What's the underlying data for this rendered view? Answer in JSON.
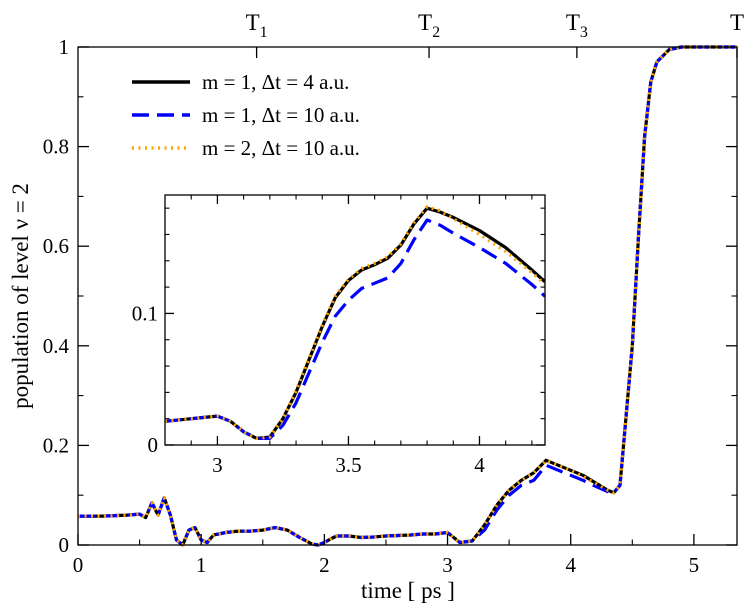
{
  "chart_data": [
    {
      "id": "main",
      "type": "line",
      "xlabel": "time [ ps ]",
      "ylabel": "population of level  ν = 2",
      "xlim": [
        0,
        5.35
      ],
      "ylim": [
        0,
        1
      ],
      "xticks": [
        0,
        1,
        2,
        3,
        4,
        5
      ],
      "xtick_labels": [
        "0",
        "1",
        "2",
        "3",
        "4",
        "5"
      ],
      "yticks": [
        0,
        0.2,
        0.4,
        0.6,
        0.8,
        1
      ],
      "ytick_labels": [
        "0",
        "0.2",
        "0.4",
        "0.6",
        "0.8",
        "1"
      ],
      "top_markers": [
        {
          "label": "T",
          "sub": "1",
          "x": 1.45
        },
        {
          "label": "T",
          "sub": "2",
          "x": 2.85
        },
        {
          "label": "T",
          "sub": "3",
          "x": 4.05
        },
        {
          "label": "T",
          "sub": "",
          "x": 5.35
        }
      ],
      "legend": {
        "position": "top-left"
      },
      "x": [
        0,
        0.1,
        0.2,
        0.3,
        0.4,
        0.5,
        0.55,
        0.6,
        0.65,
        0.7,
        0.75,
        0.8,
        0.85,
        0.9,
        0.95,
        1.0,
        1.05,
        1.1,
        1.2,
        1.3,
        1.4,
        1.5,
        1.6,
        1.7,
        1.8,
        1.9,
        1.95,
        2.0,
        2.05,
        2.1,
        2.2,
        2.3,
        2.4,
        2.5,
        2.6,
        2.7,
        2.8,
        2.9,
        3.0,
        3.05,
        3.1,
        3.2,
        3.3,
        3.4,
        3.5,
        3.6,
        3.7,
        3.8,
        3.9,
        4.0,
        4.1,
        4.2,
        4.3,
        4.35,
        4.4,
        4.5,
        4.55,
        4.6,
        4.65,
        4.7,
        4.8,
        4.9,
        5.0,
        5.1,
        5.2,
        5.35
      ],
      "series": [
        {
          "name": "m = 1,  Δt = 4 a.u.",
          "color": "#000000",
          "dash": "solid",
          "values": [
            0.058,
            0.058,
            0.058,
            0.059,
            0.06,
            0.062,
            0.055,
            0.085,
            0.06,
            0.095,
            0.06,
            0.01,
            0.0,
            0.03,
            0.035,
            0.01,
            0.005,
            0.02,
            0.025,
            0.028,
            0.028,
            0.03,
            0.035,
            0.03,
            0.015,
            0.002,
            0.0,
            0.005,
            0.012,
            0.018,
            0.018,
            0.015,
            0.016,
            0.018,
            0.019,
            0.02,
            0.022,
            0.022,
            0.025,
            0.015,
            0.005,
            0.008,
            0.04,
            0.08,
            0.11,
            0.13,
            0.145,
            0.17,
            0.16,
            0.15,
            0.14,
            0.125,
            0.11,
            0.105,
            0.12,
            0.4,
            0.62,
            0.82,
            0.93,
            0.97,
            0.995,
            1.0,
            1.0,
            1.0,
            1.0,
            1.0
          ]
        },
        {
          "name": "m = 1,  Δt = 10 a.u.",
          "color": "#0000ff",
          "dash": "long",
          "values": [
            0.058,
            0.058,
            0.058,
            0.059,
            0.06,
            0.062,
            0.055,
            0.085,
            0.06,
            0.095,
            0.06,
            0.01,
            0.0,
            0.03,
            0.035,
            0.01,
            0.005,
            0.02,
            0.025,
            0.028,
            0.028,
            0.03,
            0.035,
            0.03,
            0.015,
            0.002,
            0.0,
            0.005,
            0.012,
            0.018,
            0.018,
            0.015,
            0.016,
            0.018,
            0.019,
            0.02,
            0.022,
            0.022,
            0.025,
            0.015,
            0.005,
            0.008,
            0.03,
            0.07,
            0.1,
            0.12,
            0.13,
            0.16,
            0.15,
            0.14,
            0.13,
            0.118,
            0.107,
            0.105,
            0.12,
            0.4,
            0.62,
            0.82,
            0.93,
            0.97,
            0.995,
            1.0,
            1.0,
            1.0,
            1.0,
            1.0
          ]
        },
        {
          "name": "m = 2,  Δt = 10 a.u.",
          "color": "#ffa500",
          "dash": "dot",
          "values": [
            0.058,
            0.058,
            0.058,
            0.059,
            0.06,
            0.062,
            0.055,
            0.085,
            0.06,
            0.095,
            0.06,
            0.01,
            0.0,
            0.03,
            0.035,
            0.01,
            0.005,
            0.02,
            0.025,
            0.028,
            0.028,
            0.03,
            0.035,
            0.03,
            0.015,
            0.002,
            0.0,
            0.005,
            0.012,
            0.018,
            0.018,
            0.015,
            0.016,
            0.018,
            0.019,
            0.02,
            0.022,
            0.022,
            0.025,
            0.015,
            0.005,
            0.008,
            0.04,
            0.08,
            0.11,
            0.13,
            0.145,
            0.17,
            0.16,
            0.15,
            0.138,
            0.124,
            0.11,
            0.105,
            0.12,
            0.4,
            0.62,
            0.82,
            0.93,
            0.97,
            0.995,
            1.0,
            1.0,
            1.0,
            1.0,
            1.0
          ]
        }
      ]
    },
    {
      "id": "inset",
      "type": "line",
      "xlim": [
        2.8,
        4.25
      ],
      "ylim": [
        0,
        0.19
      ],
      "xticks": [
        3,
        3.5,
        4
      ],
      "xtick_labels": [
        "3",
        "3.5",
        "4"
      ],
      "yticks": [
        0,
        0.1
      ],
      "ytick_labels": [
        "0",
        "0.1"
      ],
      "x": [
        2.8,
        2.9,
        2.95,
        3.0,
        3.05,
        3.1,
        3.15,
        3.2,
        3.25,
        3.3,
        3.35,
        3.4,
        3.45,
        3.5,
        3.55,
        3.6,
        3.65,
        3.7,
        3.75,
        3.8,
        3.85,
        3.9,
        4.0,
        4.1,
        4.2,
        4.25
      ],
      "series": [
        {
          "name": "m = 1,  Δt = 4 a.u.",
          "color": "#000000",
          "dash": "solid",
          "values": [
            0.018,
            0.02,
            0.021,
            0.022,
            0.018,
            0.01,
            0.005,
            0.006,
            0.02,
            0.04,
            0.065,
            0.09,
            0.112,
            0.125,
            0.133,
            0.137,
            0.142,
            0.152,
            0.168,
            0.18,
            0.177,
            0.173,
            0.163,
            0.15,
            0.133,
            0.124
          ]
        },
        {
          "name": "m = 1,  Δt = 10 a.u.",
          "color": "#0000ff",
          "dash": "long",
          "values": [
            0.018,
            0.02,
            0.021,
            0.022,
            0.018,
            0.01,
            0.005,
            0.005,
            0.015,
            0.032,
            0.055,
            0.078,
            0.098,
            0.11,
            0.119,
            0.123,
            0.127,
            0.138,
            0.156,
            0.171,
            0.167,
            0.161,
            0.15,
            0.138,
            0.122,
            0.113
          ]
        },
        {
          "name": "m = 2,  Δt = 10 a.u.",
          "color": "#ffa500",
          "dash": "dot",
          "values": [
            0.018,
            0.02,
            0.021,
            0.022,
            0.018,
            0.01,
            0.005,
            0.006,
            0.02,
            0.041,
            0.066,
            0.091,
            0.113,
            0.126,
            0.134,
            0.138,
            0.143,
            0.153,
            0.169,
            0.181,
            0.178,
            0.172,
            0.16,
            0.147,
            0.131,
            0.122
          ]
        }
      ]
    }
  ]
}
